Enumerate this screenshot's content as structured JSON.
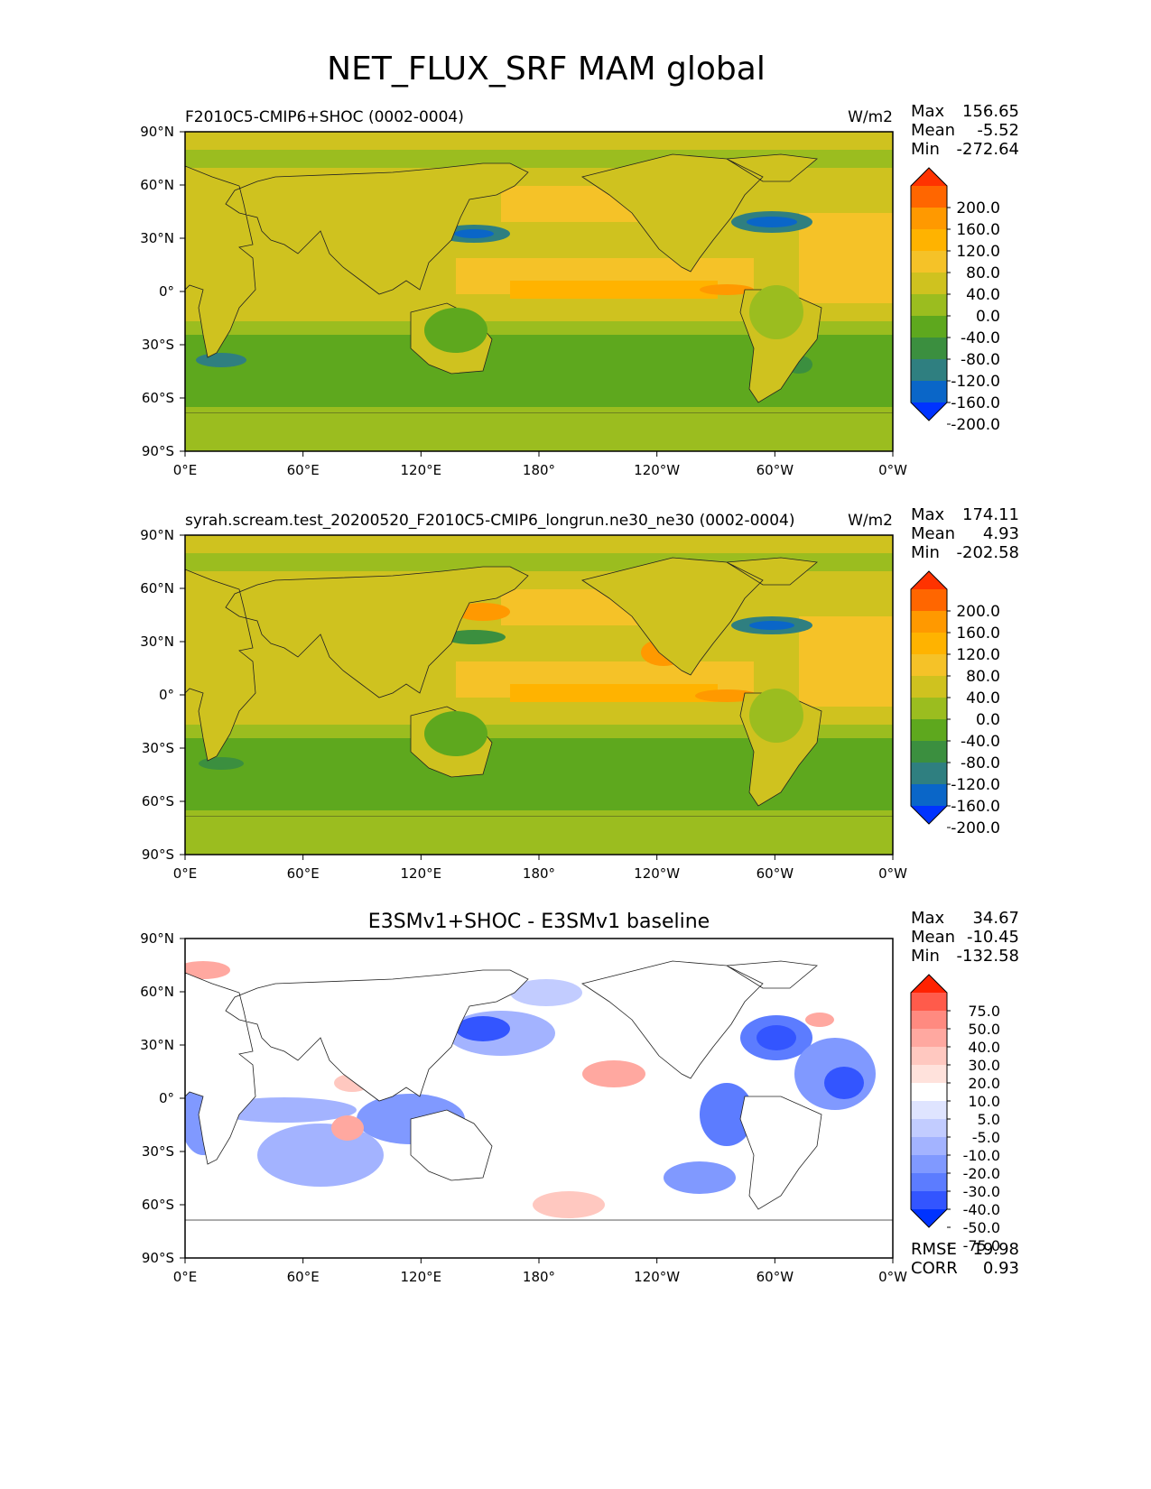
{
  "title": "NET_FLUX_SRF MAM global",
  "lon_ticks": [
    "0°E",
    "60°E",
    "120°E",
    "180°",
    "120°W",
    "60°W",
    "0°W"
  ],
  "lat_ticks": [
    "90°N",
    "60°N",
    "30°N",
    "0°",
    "30°S",
    "60°S",
    "90°S"
  ],
  "chart_data": [
    {
      "type": "heatmap",
      "title": "F2010C5-CMIP6+SHOC (0002-0004)",
      "units": "W/m2",
      "stats": {
        "Max": "156.65",
        "Mean": "-5.52",
        "Min": "-272.64"
      },
      "colorbar_levels": [
        "200.0",
        "160.0",
        "120.0",
        "80.0",
        "40.0",
        "0.0",
        "-40.0",
        "-80.0",
        "-120.0",
        "-160.0",
        "-200.0"
      ],
      "xlim": [
        0,
        360
      ],
      "ylim": [
        -90,
        90
      ]
    },
    {
      "type": "heatmap",
      "title": "syrah.scream.test_20200520_F2010C5-CMIP6_longrun.ne30_ne30 (0002-0004)",
      "units": "W/m2",
      "stats": {
        "Max": "174.11",
        "Mean": "4.93",
        "Min": "-202.58"
      },
      "colorbar_levels": [
        "200.0",
        "160.0",
        "120.0",
        "80.0",
        "40.0",
        "0.0",
        "-40.0",
        "-80.0",
        "-120.0",
        "-160.0",
        "-200.0"
      ],
      "xlim": [
        0,
        360
      ],
      "ylim": [
        -90,
        90
      ]
    },
    {
      "type": "heatmap",
      "title": "E3SMv1+SHOC - E3SMv1 baseline",
      "units": "",
      "stats": {
        "Max": "34.67",
        "Mean": "-10.45",
        "Min": "-132.58"
      },
      "colorbar_levels": [
        "75.0",
        "50.0",
        "40.0",
        "30.0",
        "20.0",
        "10.0",
        "5.0",
        "-5.0",
        "-10.0",
        "-20.0",
        "-30.0",
        "-40.0",
        "-50.0",
        "-75.0"
      ],
      "metrics": {
        "RMSE": "19.98",
        "CORR": "0.93"
      },
      "xlim": [
        0,
        360
      ],
      "ylim": [
        -90,
        90
      ]
    }
  ],
  "colors": {
    "model": [
      "#ff3300",
      "#ff6600",
      "#ff9900",
      "#ffb300",
      "#f5c228",
      "#cfc21f",
      "#9bbd1f",
      "#5ea81e",
      "#3b8f3f",
      "#2f7f80",
      "#0a66c8",
      "#0033ff"
    ],
    "diff": [
      "#ff2200",
      "#ff5b4b",
      "#ff8a80",
      "#ffa8a0",
      "#ffc8c0",
      "#ffe2dc",
      "#ffffff",
      "#dfe4ff",
      "#c2ccff",
      "#a3b3ff",
      "#8099ff",
      "#5c7cff",
      "#3355ff",
      "#0033ff"
    ]
  }
}
